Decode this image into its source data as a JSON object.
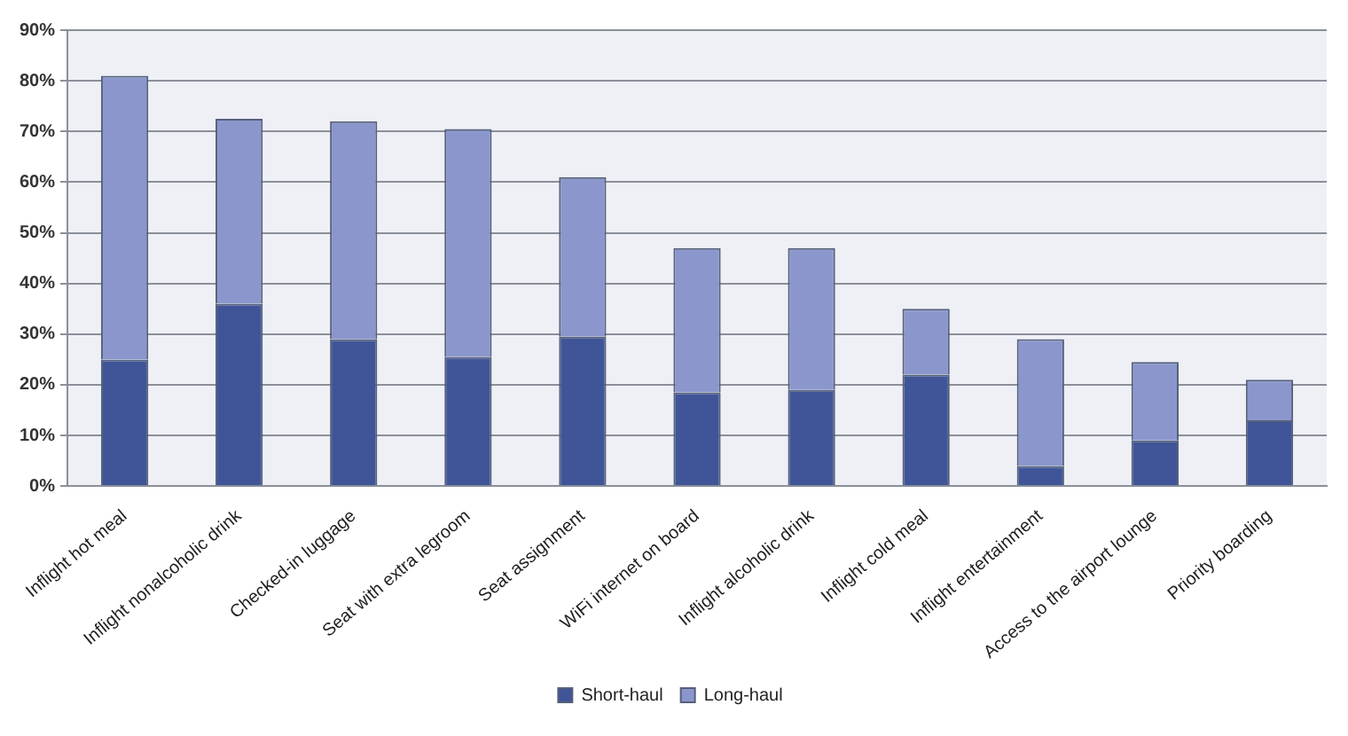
{
  "chart_data": {
    "type": "bar",
    "stacked": true,
    "categories": [
      "Inflight hot meal",
      "Inflight nonalcoholic drink",
      "Checked-in luggage",
      "Seat with extra legroom",
      "Seat assignment",
      "WiFi internet on board",
      "Inflight alcoholic drink",
      "Inflight cold meal",
      "Inflight entertainment",
      "Access to the airport lounge",
      "Priority boarding"
    ],
    "series": [
      {
        "name": "Short-haul",
        "color": "#3f5597",
        "values": [
          25,
          36,
          29,
          25.5,
          29.5,
          18.5,
          19,
          22,
          4,
          9,
          13
        ]
      },
      {
        "name": "Long-haul",
        "color": "#8b97cc",
        "values": [
          56,
          36.5,
          43,
          45,
          31.5,
          28.5,
          28,
          13,
          25,
          15.5,
          8
        ]
      }
    ],
    "ylim": [
      0,
      90
    ],
    "yticks": [
      {
        "value": 0,
        "label": "0%"
      },
      {
        "value": 10,
        "label": "10%"
      },
      {
        "value": 20,
        "label": "20%"
      },
      {
        "value": 30,
        "label": "30%"
      },
      {
        "value": 40,
        "label": "40%"
      },
      {
        "value": 50,
        "label": "50%"
      },
      {
        "value": 60,
        "label": "60%"
      },
      {
        "value": 70,
        "label": "70%"
      },
      {
        "value": 80,
        "label": "80%"
      },
      {
        "value": 90,
        "label": "90%"
      }
    ],
    "grid": "y",
    "legend": "bottom"
  }
}
